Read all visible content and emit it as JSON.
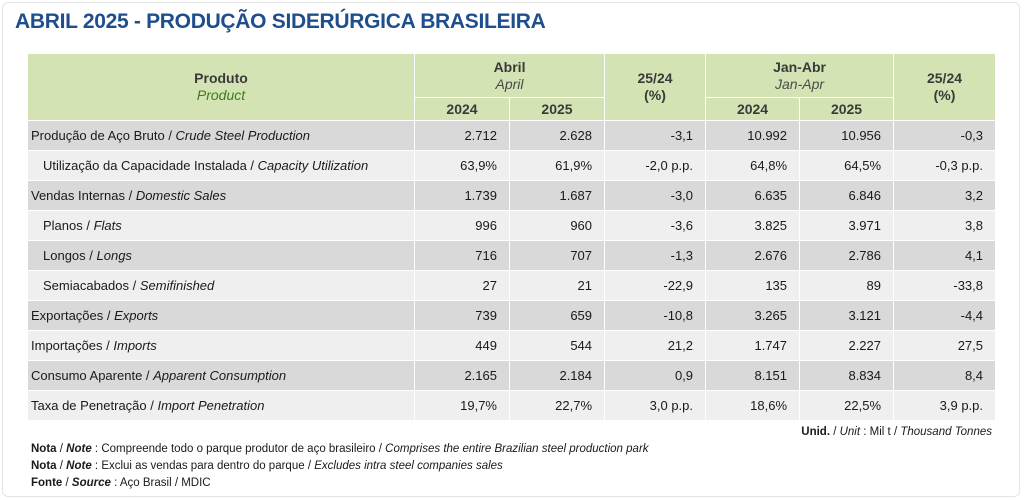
{
  "title": "ABRIL 2025 - PRODUÇÃO SIDERÚRGICA BRASILEIRA",
  "header": {
    "produto_pt": "Produto",
    "produto_en": "Product",
    "month_pt": "Abril",
    "month_en": "April",
    "change1_line1": "25/24",
    "change1_line2": "(%)",
    "ytd_pt": "Jan-Abr",
    "ytd_en": "Jan-Apr",
    "change2_line1": "25/24",
    "change2_line2": "(%)",
    "year_a": "2024",
    "year_b": "2025",
    "year_c": "2024",
    "year_d": "2025"
  },
  "rows": [
    {
      "pt": "Produção de Aço Bruto",
      "en": "Crude Steel Production",
      "m2024": "2.712",
      "m2025": "2.628",
      "mchg": "-3,1",
      "y2024": "10.992",
      "y2025": "10.956",
      "ychg": "-0,3"
    },
    {
      "pt": "Utilização da Capacidade Instalada",
      "en": "Capacity Utilization",
      "m2024": "63,9%",
      "m2025": "61,9%",
      "mchg": "-2,0 p.p.",
      "y2024": "64,8%",
      "y2025": "64,5%",
      "ychg": "-0,3 p.p."
    },
    {
      "pt": "Vendas Internas",
      "en": "Domestic Sales",
      "m2024": "1.739",
      "m2025": "1.687",
      "mchg": "-3,0",
      "y2024": "6.635",
      "y2025": "6.846",
      "ychg": "3,2"
    },
    {
      "pt": "Planos",
      "en": "Flats",
      "m2024": "996",
      "m2025": "960",
      "mchg": "-3,6",
      "y2024": "3.825",
      "y2025": "3.971",
      "ychg": "3,8"
    },
    {
      "pt": "Longos",
      "en": "Longs",
      "m2024": "716",
      "m2025": "707",
      "mchg": "-1,3",
      "y2024": "2.676",
      "y2025": "2.786",
      "ychg": "4,1"
    },
    {
      "pt": "Semiacabados",
      "en": "Semifinished",
      "m2024": "27",
      "m2025": "21",
      "mchg": "-22,9",
      "y2024": "135",
      "y2025": "89",
      "ychg": "-33,8"
    },
    {
      "pt": "Exportações",
      "en": "Exports",
      "m2024": "739",
      "m2025": "659",
      "mchg": "-10,8",
      "y2024": "3.265",
      "y2025": "3.121",
      "ychg": "-4,4"
    },
    {
      "pt": "Importações",
      "en": "Imports",
      "m2024": "449",
      "m2025": "544",
      "mchg": "21,2",
      "y2024": "1.747",
      "y2025": "2.227",
      "ychg": "27,5"
    },
    {
      "pt": "Consumo Aparente",
      "en": "Apparent Consumption",
      "m2024": "2.165",
      "m2025": "2.184",
      "mchg": "0,9",
      "y2024": "8.151",
      "y2025": "8.834",
      "ychg": "8,4"
    },
    {
      "pt": "Taxa de Penetração",
      "en": "Import Penetration",
      "m2024": "19,7%",
      "m2025": "22,7%",
      "mchg": "3,0 p.p.",
      "y2024": "18,6%",
      "y2025": "22,5%",
      "ychg": "3,9 p.p."
    }
  ],
  "unit": {
    "label_pt": "Unid.",
    "label_en": "Unit",
    "value_pt": "Mil t",
    "value_en": "Thousand Tonnes"
  },
  "notes": [
    {
      "label_pt": "Nota",
      "label_en": "Note",
      "text_pt": "Compreende todo o parque produtor de aço brasileiro",
      "text_en": "Comprises the entire Brazilian steel production park"
    },
    {
      "label_pt": "Nota",
      "label_en": "Note",
      "text_pt": "Exclui as vendas para dentro do parque",
      "text_en": "Excludes intra steel companies sales"
    },
    {
      "label_pt": "Fonte",
      "label_en": "Source",
      "text_pt": "Aço Brasil / MDIC",
      "text_en": ""
    }
  ],
  "colors": {
    "title": "#1f4e8c",
    "header_bg": "#d3e3b4",
    "row_dark": "#d9d9d9",
    "row_light": "#efefef",
    "product_en": "#3d7a1e"
  }
}
